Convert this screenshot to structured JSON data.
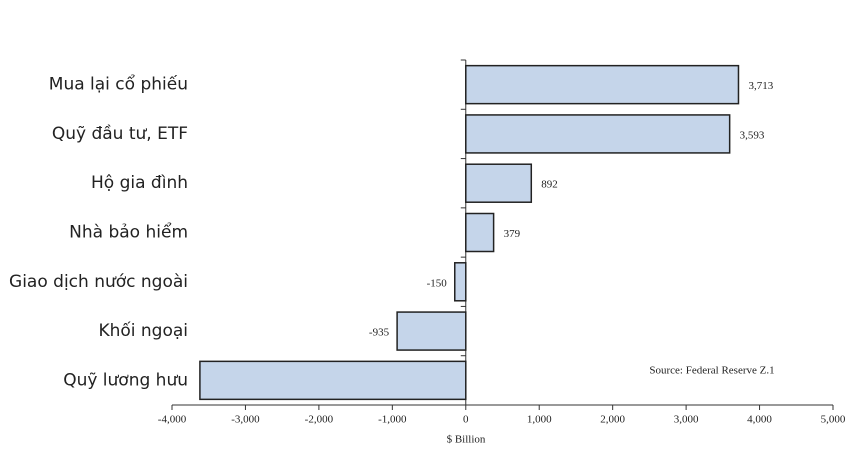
{
  "chart_data": {
    "type": "hbar",
    "categories": [
      "Mua lại cổ phiếu",
      "Quỹ đầu tư, ETF",
      "Hộ gia đình",
      "Nhà bảo hiểm",
      "Giao dịch nước ngoài",
      "Khối ngoại",
      "Quỹ lương hưu"
    ],
    "values": [
      3713,
      3593,
      892,
      379,
      -150,
      -935,
      -3620
    ],
    "value_labels": [
      "3,713",
      "3,593",
      "892",
      "379",
      "-150",
      "-935",
      null
    ],
    "color": "#c5d5ea",
    "xlim": [
      -4000,
      5000
    ],
    "xticks": [
      {
        "value": -4000,
        "label": "-4,000"
      },
      {
        "value": -3000,
        "label": "-3,000"
      },
      {
        "value": -2000,
        "label": "-2,000"
      },
      {
        "value": -1000,
        "label": "-1,000"
      },
      0,
      {
        "value": 1000,
        "label": "1,000"
      },
      {
        "value": 2000,
        "label": "2,000"
      },
      {
        "value": 3000,
        "label": "3,000"
      },
      {
        "value": 4000,
        "label": "4,000"
      },
      {
        "value": 5000,
        "label": "5,000"
      }
    ],
    "xlabel": "$ Billion",
    "annotation": "Source: Federal Reserve Z.1"
  }
}
